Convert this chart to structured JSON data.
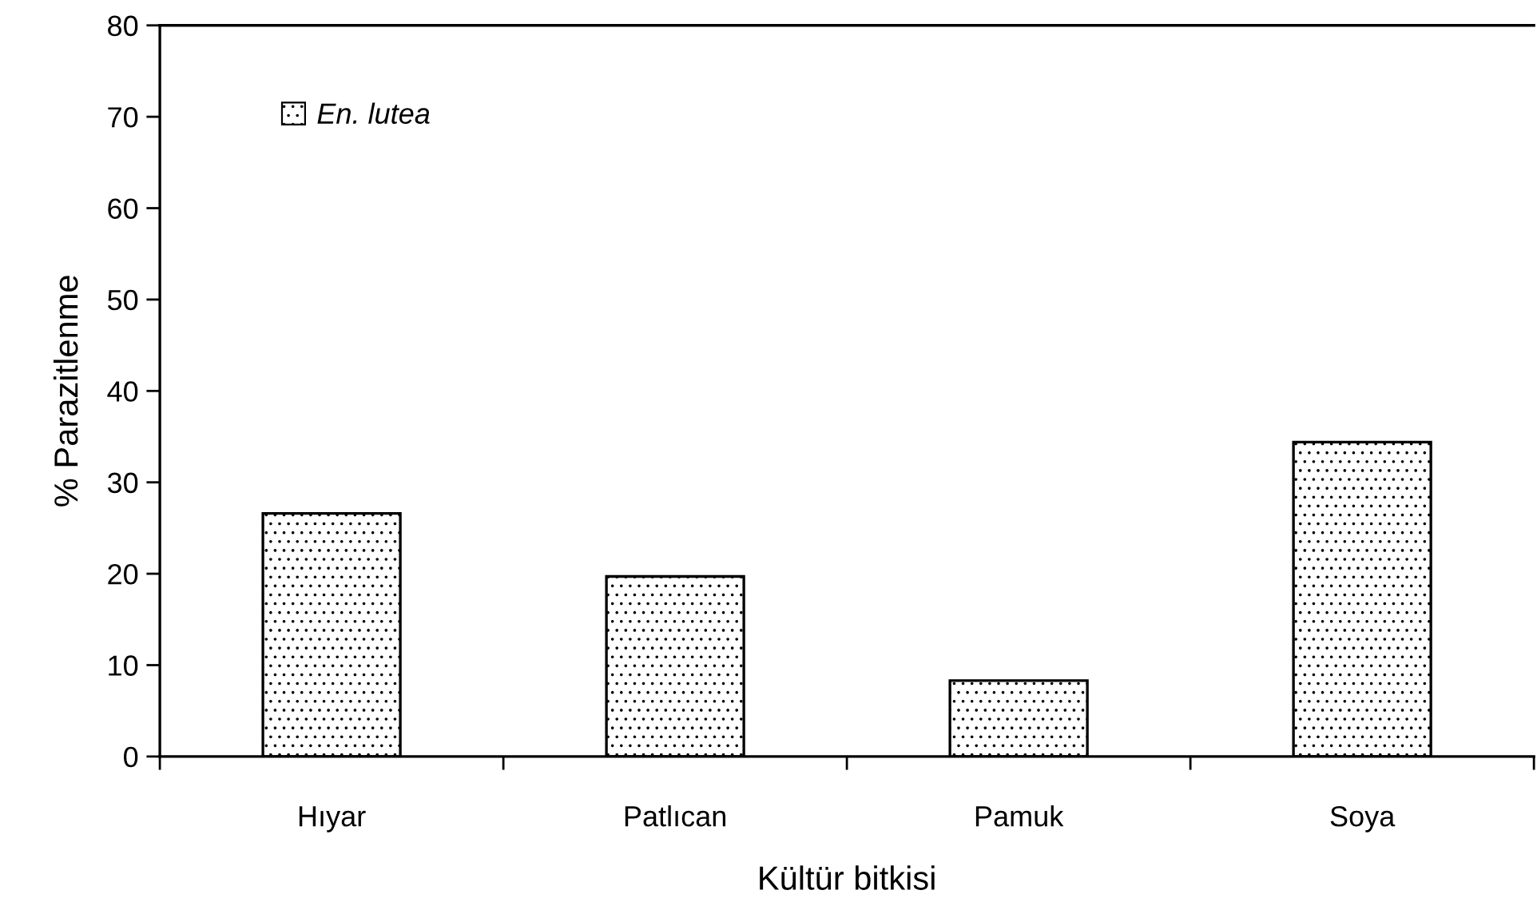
{
  "chart_data": {
    "type": "bar",
    "xlabel": "Kültür bitkisi",
    "ylabel": "% Parazitlenme",
    "categories": [
      "Hıyar",
      "Patlıcan",
      "Pamuk",
      "Soya"
    ],
    "series": [
      {
        "name": "En. lutea",
        "color": "#000000",
        "values": [
          26.6,
          19.7,
          8.3,
          34.4
        ]
      }
    ],
    "ylim": [
      0,
      80
    ],
    "yticks": [
      0,
      10,
      20,
      30,
      40,
      50,
      60,
      70,
      80
    ],
    "grid": false,
    "legend": "top left"
  }
}
